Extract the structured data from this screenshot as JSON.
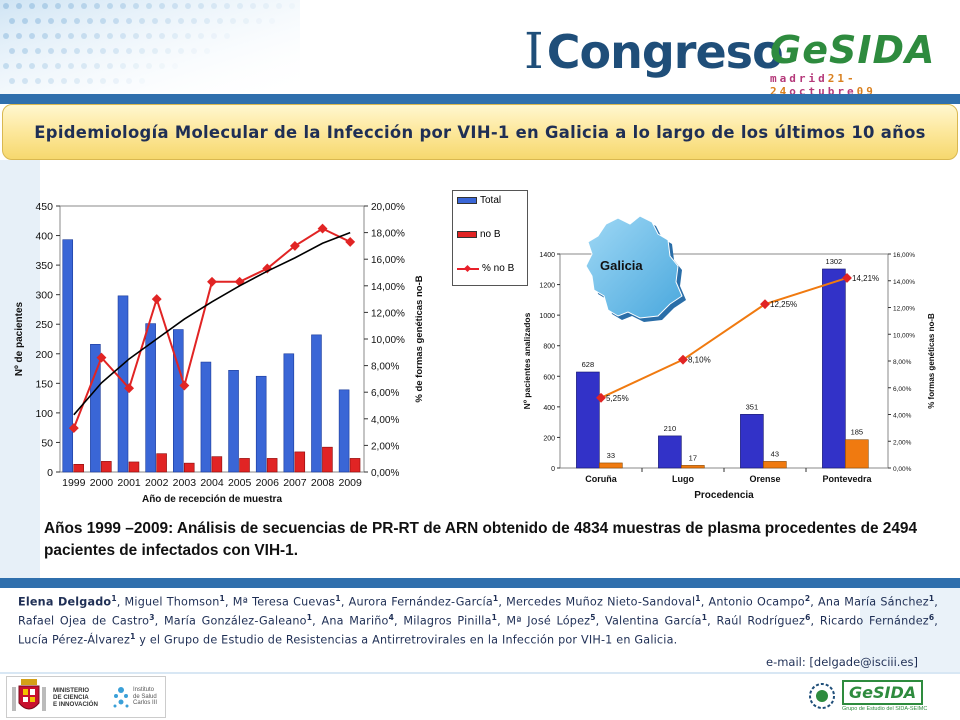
{
  "header": {
    "roman": "I",
    "congress": "Congreso",
    "brand": "GeSIDA",
    "date_prefix": "madrid",
    "date_days": "21-24",
    "date_month": "octubre",
    "date_year": "09"
  },
  "title": "Epidemiología Molecular de la Infección por VIH-1 en Galicia a lo largo de los últimos 10 años",
  "colors": {
    "bar_total": "#3a66d6",
    "bar_nob": "#e12424",
    "line_pct": "#e12424",
    "bar_analyzed": "#3232c8",
    "bar_forms": "#f07a10",
    "line_right": "#f07a10",
    "marker_right": "#e12424",
    "trend": "#000000"
  },
  "map": {
    "label": "Galicia"
  },
  "legend_left": {
    "total": "Total",
    "no_b": "no B",
    "pct_no_b": "% no B"
  },
  "chart_data": [
    {
      "type": "bar",
      "categories": [
        "1999",
        "2000",
        "2001",
        "2002",
        "2003",
        "2004",
        "2005",
        "2006",
        "2007",
        "2008",
        "2009"
      ],
      "series": [
        {
          "name": "Total",
          "values": [
            393,
            216,
            298,
            251,
            241,
            186,
            172,
            162,
            200,
            232,
            139
          ]
        },
        {
          "name": "no B",
          "values": [
            13,
            18,
            17,
            31,
            15,
            26,
            23,
            23,
            34,
            42,
            23
          ]
        },
        {
          "name": "% no B",
          "axis": "right",
          "values": [
            3.3,
            8.6,
            6.3,
            13.0,
            6.5,
            14.3,
            14.3,
            15.3,
            17.0,
            18.3,
            17.3
          ]
        }
      ],
      "trendline": [
        4.3,
        6.7,
        8.5,
        10.0,
        11.5,
        12.8,
        14.0,
        15.1,
        16.1,
        17.2,
        18.0
      ],
      "xlabel": "Año de recepción de muestra",
      "ylabel": "Nº de pacientes",
      "ylabel_right": "% de formas genéticas no-B",
      "ylim": [
        0,
        450
      ],
      "yticks": [
        "0",
        "50",
        "100",
        "150",
        "200",
        "250",
        "300",
        "350",
        "400",
        "450"
      ],
      "ylim_right": [
        0,
        20
      ],
      "yticks_right": [
        "0,00%",
        "2,00%",
        "4,00%",
        "6,00%",
        "8,00%",
        "10,00%",
        "12,00%",
        "14,00%",
        "16,00%",
        "18,00%",
        "20,00%"
      ],
      "legend": "right"
    },
    {
      "type": "bar",
      "categories": [
        "Coruña",
        "Lugo",
        "Orense",
        "Pontevedra"
      ],
      "series": [
        {
          "values": [
            628,
            210,
            351,
            1302
          ],
          "labels": [
            "628",
            "210",
            "351",
            "1302"
          ]
        },
        {
          "values": [
            33,
            17,
            43,
            185
          ],
          "labels": [
            "33",
            "17",
            "43",
            "185"
          ]
        },
        {
          "axis": "right",
          "values": [
            5.25,
            8.1,
            12.25,
            14.21
          ],
          "labels": [
            "5,25%",
            "8,10%",
            "12,25%",
            "14,21%"
          ]
        }
      ],
      "xlabel": "Procedencia",
      "ylabel": "Nº pacientes analizados",
      "ylabel_right": "% formas genéticas no-B",
      "ylim": [
        0,
        1400
      ],
      "yticks": [
        "0",
        "200",
        "400",
        "600",
        "800",
        "1000",
        "1200",
        "1400"
      ],
      "ylim_right": [
        0,
        16
      ],
      "yticks_right": [
        "0,00%",
        "2,00%",
        "4,00%",
        "6,00%",
        "8,00%",
        "10,00%",
        "12,00%",
        "14,00%",
        "16,00%"
      ]
    }
  ],
  "summary": "Años 1999 –2009: Análisis de secuencias de PR-RT de ARN obtenido de  4834 muestras de plasma procedentes de 2494 pacientes de infectados con VIH-1.",
  "authors": [
    {
      "name": "Elena Delgado",
      "sup": "1",
      "bold": true
    },
    {
      "name": "Miguel Thomson",
      "sup": "1"
    },
    {
      "name": "Mª Teresa Cuevas",
      "sup": "1"
    },
    {
      "name": "Aurora Fernández-García",
      "sup": "1"
    },
    {
      "name": "Mercedes Muñoz Nieto-Sandoval",
      "sup": "1"
    },
    {
      "name": "Antonio Ocampo",
      "sup": "2"
    },
    {
      "name": "Ana María Sánchez",
      "sup": "1"
    },
    {
      "name": "Rafael  Ojea de Castro",
      "sup": "3"
    },
    {
      "name": "María González-Galeano",
      "sup": "1"
    },
    {
      "name": "Ana Mariño",
      "sup": "4"
    },
    {
      "name": "Milagros Pinilla",
      "sup": "1"
    },
    {
      "name": " Mª José López",
      "sup": "5"
    },
    {
      "name": "Valentina García",
      "sup": "1"
    },
    {
      "name": " Raúl Rodríguez",
      "sup": "6"
    },
    {
      "name": " Ricardo Fernández",
      "sup": "6"
    },
    {
      "name": "Lucía Pérez-Álvarez",
      "sup": "1"
    }
  ],
  "authors_tail": " y el Grupo de Estudio de Resistencias a  Antirretrovirales en la Infección por VIH-1 en Galicia.",
  "email_label": "e-mail:",
  "email_value": "[delgade@isciii.es]",
  "footer": {
    "ministerio": [
      "MINISTERIO",
      "DE CIENCIA",
      "E INNOVACIÓN"
    ],
    "instituto": [
      "Instituto",
      "de Salud",
      "Carlos III"
    ],
    "gesida_logo": "GeSIDA",
    "gesida_sub": "Grupo de Estudio del SIDA-SEIMC"
  }
}
